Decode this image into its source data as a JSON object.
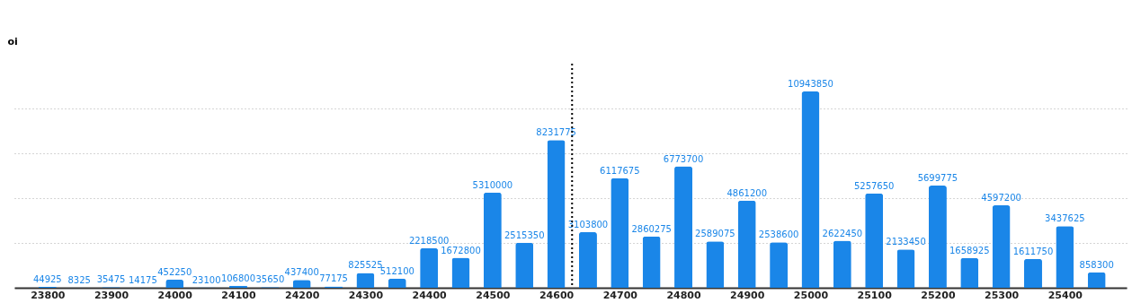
{
  "chart_data": {
    "type": "bar",
    "ylabel": "oi",
    "x": [
      23800,
      23850,
      23900,
      23950,
      24000,
      24050,
      24100,
      24150,
      24200,
      24250,
      24300,
      24350,
      24400,
      24450,
      24500,
      24550,
      24600,
      24650,
      24700,
      24750,
      24800,
      24850,
      24900,
      24950,
      25000,
      25050,
      25100,
      25150,
      25200,
      25250,
      25300,
      25350,
      25400,
      25450
    ],
    "values": [
      44925,
      8325,
      35475,
      14175,
      452250,
      23100,
      106800,
      35650,
      437400,
      77175,
      825525,
      512100,
      2218500,
      1672800,
      5310000,
      2515350,
      8231775,
      3103800,
      6117675,
      2860275,
      6773700,
      2589075,
      4861200,
      2538600,
      10943850,
      2622450,
      5257650,
      2133450,
      5699775,
      1658925,
      4597200,
      1611750,
      3437625,
      858300
    ],
    "color": "#1a86e8",
    "data_labels": true,
    "xlim": [
      23755,
      25490
    ],
    "xticks": [
      23800,
      23900,
      24000,
      24100,
      24200,
      24300,
      24400,
      24500,
      24600,
      24700,
      24800,
      24900,
      25000,
      25100,
      25200,
      25300,
      25400
    ],
    "ylim": [
      0,
      12500000
    ],
    "yticks": [
      {
        "value": 0,
        "label": null
      },
      {
        "value": 2500000,
        "label": null
      },
      {
        "value": 5000000,
        "label": null
      },
      {
        "value": 7500000,
        "label": null
      },
      {
        "value": 10000000,
        "label": null
      }
    ],
    "tick_labels": "x",
    "grid": "y",
    "ref_lines": [
      {
        "axis": "x",
        "value": 24625,
        "label": null,
        "color": "#000000",
        "line_style": "dotted"
      }
    ]
  }
}
